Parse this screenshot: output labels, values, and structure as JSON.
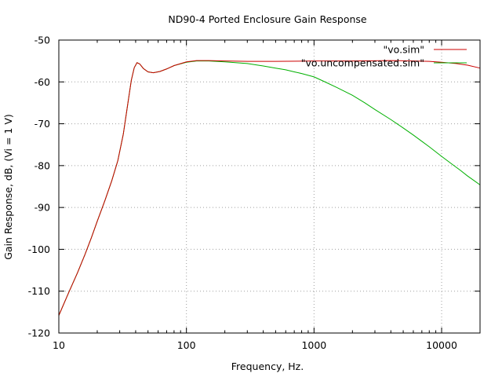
{
  "chart_data": {
    "type": "line",
    "title": "ND90-4 Ported Enclosure Gain Response",
    "xlabel": "Frequency, Hz.",
    "ylabel": "Gain Response, dB, (Vi = 1 V)",
    "x_scale": "log",
    "xlim": [
      10,
      20000
    ],
    "ylim": [
      -120,
      -50
    ],
    "grid": true,
    "legend_position": "top-right",
    "x_ticks": [
      {
        "value": 10,
        "label": "10"
      },
      {
        "value": 100,
        "label": "100"
      },
      {
        "value": 1000,
        "label": "1000"
      },
      {
        "value": 10000,
        "label": "10000"
      }
    ],
    "y_ticks": [
      {
        "value": -50,
        "label": "-50"
      },
      {
        "value": -60,
        "label": "-60"
      },
      {
        "value": -70,
        "label": "-70"
      },
      {
        "value": -80,
        "label": "-80"
      },
      {
        "value": -90,
        "label": "-90"
      },
      {
        "value": -100,
        "label": "-100"
      },
      {
        "value": -110,
        "label": "-110"
      },
      {
        "value": -120,
        "label": "-120"
      }
    ],
    "series": [
      {
        "name": "\"vo.sim\"",
        "color": "#cc0000",
        "points": [
          [
            10,
            -115.8
          ],
          [
            12,
            -110.2
          ],
          [
            14,
            -105.6
          ],
          [
            16,
            -101.3
          ],
          [
            18,
            -97.2
          ],
          [
            20,
            -93.3
          ],
          [
            23,
            -88.3
          ],
          [
            26,
            -83.6
          ],
          [
            29,
            -78.8
          ],
          [
            32,
            -72.5
          ],
          [
            35,
            -64.5
          ],
          [
            37,
            -59.6
          ],
          [
            39,
            -56.6
          ],
          [
            41,
            -55.4
          ],
          [
            43,
            -55.7
          ],
          [
            46,
            -56.8
          ],
          [
            50,
            -57.6
          ],
          [
            55,
            -57.8
          ],
          [
            62,
            -57.5
          ],
          [
            70,
            -56.9
          ],
          [
            80,
            -56.1
          ],
          [
            100,
            -55.2
          ],
          [
            120,
            -54.9
          ],
          [
            150,
            -54.9
          ],
          [
            200,
            -55.0
          ],
          [
            300,
            -55.1
          ],
          [
            500,
            -55.1
          ],
          [
            1000,
            -55.0
          ],
          [
            2000,
            -55.0
          ],
          [
            4000,
            -54.9
          ],
          [
            6000,
            -55.0
          ],
          [
            8000,
            -55.1
          ],
          [
            10000,
            -55.3
          ],
          [
            13000,
            -55.6
          ],
          [
            16000,
            -56.0
          ],
          [
            20000,
            -56.7
          ]
        ]
      },
      {
        "name": "\"vo.uncompensated.sim\"",
        "color": "#00b000",
        "points": [
          [
            10,
            -115.8
          ],
          [
            12,
            -110.2
          ],
          [
            14,
            -105.6
          ],
          [
            16,
            -101.3
          ],
          [
            18,
            -97.2
          ],
          [
            20,
            -93.3
          ],
          [
            23,
            -88.3
          ],
          [
            26,
            -83.6
          ],
          [
            29,
            -78.8
          ],
          [
            32,
            -72.5
          ],
          [
            35,
            -64.5
          ],
          [
            37,
            -59.6
          ],
          [
            39,
            -56.6
          ],
          [
            41,
            -55.4
          ],
          [
            43,
            -55.7
          ],
          [
            46,
            -56.8
          ],
          [
            50,
            -57.6
          ],
          [
            55,
            -57.8
          ],
          [
            62,
            -57.5
          ],
          [
            70,
            -56.9
          ],
          [
            80,
            -56.1
          ],
          [
            100,
            -55.3
          ],
          [
            120,
            -55.0
          ],
          [
            150,
            -55.0
          ],
          [
            200,
            -55.2
          ],
          [
            300,
            -55.6
          ],
          [
            400,
            -56.2
          ],
          [
            500,
            -56.7
          ],
          [
            600,
            -57.1
          ],
          [
            700,
            -57.6
          ],
          [
            800,
            -58.0
          ],
          [
            1000,
            -58.8
          ],
          [
            1200,
            -59.9
          ],
          [
            1500,
            -61.3
          ],
          [
            2000,
            -63.2
          ],
          [
            2500,
            -65.0
          ],
          [
            3000,
            -66.6
          ],
          [
            4000,
            -69.0
          ],
          [
            5000,
            -71.0
          ],
          [
            6000,
            -72.7
          ],
          [
            7000,
            -74.2
          ],
          [
            8000,
            -75.5
          ],
          [
            10000,
            -77.8
          ],
          [
            12000,
            -79.6
          ],
          [
            14000,
            -81.1
          ],
          [
            16000,
            -82.5
          ],
          [
            18000,
            -83.6
          ],
          [
            20000,
            -84.6
          ]
        ]
      }
    ]
  }
}
